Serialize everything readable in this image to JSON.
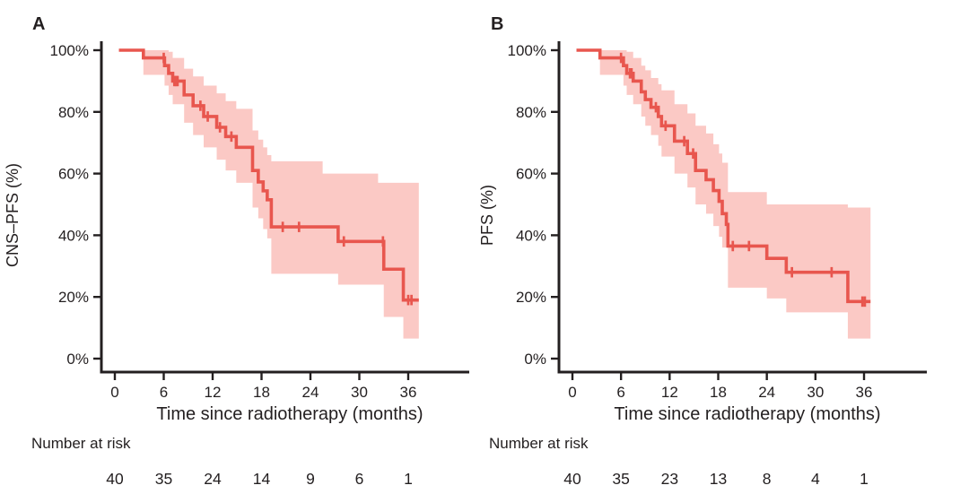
{
  "figure": {
    "background": "#ffffff",
    "colors": {
      "curve": "#e8564e",
      "confidence_band": "#fbc9c5",
      "axis": "#231f20",
      "text": "#231f20"
    }
  },
  "chart_data": [
    {
      "type": "line",
      "subtype": "kaplan-meier-step",
      "panel_label": "A",
      "xlabel": "Time since radiotherapy (months)",
      "ylabel": "CNS–PFS (%)",
      "xlim": [
        0,
        39
      ],
      "ylim": [
        0,
        100
      ],
      "x_ticks": [
        0,
        6,
        12,
        18,
        24,
        30,
        36
      ],
      "x_tick_labels": [
        "0",
        "6",
        "12",
        "18",
        "24",
        "30",
        "36"
      ],
      "y_ticks": [
        0,
        20,
        40,
        60,
        80,
        100
      ],
      "y_tick_labels": [
        "0%",
        "20%",
        "40%",
        "60%",
        "80%",
        "100%"
      ],
      "grid": false,
      "legend": false,
      "curve_start_time": 0.5,
      "curve_end_time": 37.3,
      "steps_time_percent": [
        [
          0.5,
          100
        ],
        [
          3.5,
          97.5
        ],
        [
          6.1,
          95
        ],
        [
          6.6,
          92.5
        ],
        [
          7.1,
          90
        ],
        [
          8.5,
          85.5
        ],
        [
          9.6,
          82
        ],
        [
          10.9,
          78.5
        ],
        [
          12.5,
          75
        ],
        [
          13.6,
          72
        ],
        [
          14.9,
          68.5
        ],
        [
          16.9,
          61
        ],
        [
          17.6,
          57.3
        ],
        [
          18.2,
          54.4
        ],
        [
          18.7,
          51.5
        ],
        [
          19.2,
          42.7
        ],
        [
          27.4,
          38
        ],
        [
          33.0,
          29
        ],
        [
          35.4,
          19
        ]
      ],
      "censor_marks_time_percent": [
        [
          6.0,
          97.5
        ],
        [
          7.3,
          90
        ],
        [
          7.5,
          90
        ],
        [
          7.7,
          90
        ],
        [
          10.5,
          82
        ],
        [
          11.4,
          78.5
        ],
        [
          12.9,
          75
        ],
        [
          14.3,
          72
        ],
        [
          20.6,
          42.7
        ],
        [
          22.6,
          42.7
        ],
        [
          28.1,
          38
        ],
        [
          32.9,
          38
        ],
        [
          36.0,
          19
        ],
        [
          36.4,
          19
        ]
      ],
      "ci_band_time_lo_hi": [
        [
          3.5,
          92,
          100
        ],
        [
          6.1,
          88.5,
          100
        ],
        [
          6.6,
          85.5,
          99.5
        ],
        [
          7.1,
          82.5,
          97.5
        ],
        [
          8.5,
          76.5,
          94
        ],
        [
          9.6,
          72.5,
          91.5
        ],
        [
          10.9,
          68.5,
          88.5
        ],
        [
          12.5,
          64.5,
          86
        ],
        [
          13.6,
          61,
          83.5
        ],
        [
          14.9,
          57,
          81
        ],
        [
          16.9,
          49,
          74
        ],
        [
          17.6,
          45.5,
          71
        ],
        [
          18.2,
          42,
          68.5
        ],
        [
          18.7,
          39,
          66
        ],
        [
          19.2,
          27.5,
          64
        ],
        [
          25.5,
          27.5,
          60
        ],
        [
          27.4,
          24,
          60
        ],
        [
          32.3,
          24,
          57
        ],
        [
          33.0,
          13.5,
          57
        ],
        [
          35.4,
          6.5,
          57
        ]
      ],
      "number_at_risk_label": "Number at risk",
      "risk_times": [
        0,
        6,
        12,
        18,
        24,
        30,
        36
      ],
      "number_at_risk": [
        40,
        35,
        24,
        14,
        9,
        6,
        1
      ]
    },
    {
      "type": "line",
      "subtype": "kaplan-meier-step",
      "panel_label": "B",
      "xlabel": "Time since radiotherapy (months)",
      "ylabel": "PFS (%)",
      "xlim": [
        0,
        39
      ],
      "ylim": [
        0,
        100
      ],
      "x_ticks": [
        0,
        6,
        12,
        18,
        24,
        30,
        36
      ],
      "x_tick_labels": [
        "0",
        "6",
        "12",
        "18",
        "24",
        "30",
        "36"
      ],
      "y_ticks": [
        0,
        20,
        40,
        60,
        80,
        100
      ],
      "y_tick_labels": [
        "0%",
        "20%",
        "40%",
        "60%",
        "80%",
        "100%"
      ],
      "grid": false,
      "legend": false,
      "curve_start_time": 0.5,
      "curve_end_time": 36.8,
      "steps_time_percent": [
        [
          0.5,
          100
        ],
        [
          3.4,
          97.5
        ],
        [
          6.3,
          95
        ],
        [
          6.7,
          92.5
        ],
        [
          7.5,
          90
        ],
        [
          8.5,
          86.5
        ],
        [
          9.0,
          84
        ],
        [
          9.7,
          81.5
        ],
        [
          10.6,
          78.5
        ],
        [
          11.0,
          75.5
        ],
        [
          12.6,
          70.5
        ],
        [
          14.2,
          66.5
        ],
        [
          15.2,
          61
        ],
        [
          16.5,
          58
        ],
        [
          17.4,
          54.5
        ],
        [
          18.1,
          51
        ],
        [
          18.5,
          47
        ],
        [
          19.0,
          43.5
        ],
        [
          19.2,
          36.5
        ],
        [
          24.0,
          32.5
        ],
        [
          26.4,
          28
        ],
        [
          34.0,
          18.5
        ]
      ],
      "censor_marks_time_percent": [
        [
          6.0,
          97.5
        ],
        [
          7.1,
          92.5
        ],
        [
          7.3,
          92.5
        ],
        [
          10.3,
          81.5
        ],
        [
          11.5,
          75.5
        ],
        [
          13.8,
          70.5
        ],
        [
          14.9,
          66.5
        ],
        [
          19.8,
          36.5
        ],
        [
          21.8,
          36.5
        ],
        [
          27.1,
          28
        ],
        [
          32.0,
          28
        ],
        [
          35.8,
          18.5
        ],
        [
          36.1,
          18.5
        ]
      ],
      "ci_band_time_lo_hi": [
        [
          3.4,
          92,
          100
        ],
        [
          6.3,
          88.5,
          100
        ],
        [
          6.7,
          85.5,
          99.5
        ],
        [
          7.5,
          82.5,
          97.5
        ],
        [
          8.5,
          78.5,
          95
        ],
        [
          9.0,
          75.5,
          93.5
        ],
        [
          9.7,
          72.5,
          91
        ],
        [
          10.6,
          69,
          89
        ],
        [
          11.0,
          65.5,
          87
        ],
        [
          12.6,
          60,
          82.5
        ],
        [
          14.2,
          55.5,
          79.5
        ],
        [
          15.2,
          50,
          75.5
        ],
        [
          16.5,
          47,
          73
        ],
        [
          17.4,
          43,
          69.5
        ],
        [
          18.1,
          39.5,
          66.5
        ],
        [
          18.5,
          36,
          63.5
        ],
        [
          19.2,
          23,
          54
        ],
        [
          24.0,
          19.5,
          50
        ],
        [
          26.4,
          15,
          50
        ],
        [
          34.0,
          6.5,
          49
        ]
      ],
      "number_at_risk_label": "Number at risk",
      "risk_times": [
        0,
        6,
        12,
        18,
        24,
        30,
        36
      ],
      "number_at_risk": [
        40,
        35,
        23,
        13,
        8,
        4,
        1
      ]
    }
  ]
}
